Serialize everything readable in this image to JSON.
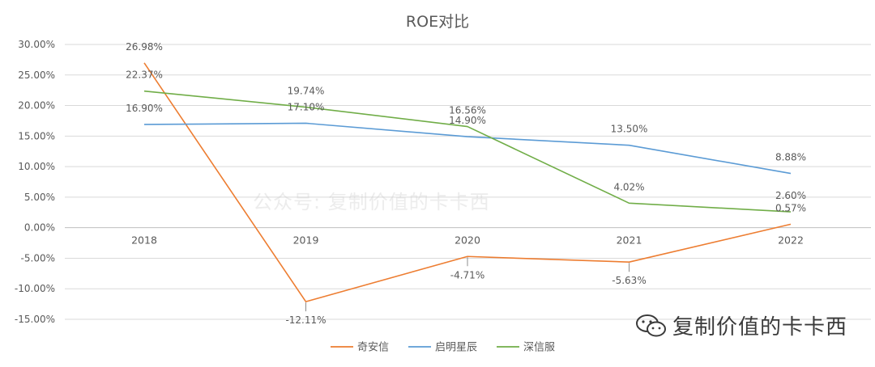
{
  "watermarks": {
    "center": "公众号: 复制价值的卡卡西",
    "corner": "复制价值的卡卡西",
    "corner_icon": "wechat-chat-bubbles-icon"
  },
  "chart_data": {
    "type": "line",
    "title": "ROE对比",
    "xlabel": "",
    "ylabel": "",
    "categories": [
      "2018",
      "2019",
      "2020",
      "2021",
      "2022"
    ],
    "ylim": [
      -15,
      30
    ],
    "yticks": [
      30,
      25,
      20,
      15,
      10,
      5,
      0,
      -5,
      -10,
      -15
    ],
    "ytick_labels": [
      "30.00%",
      "25.00%",
      "20.00%",
      "15.00%",
      "10.00%",
      "5.00%",
      "0.00%",
      "-5.00%",
      "-10.00%",
      "-15.00%"
    ],
    "grid": true,
    "legend_position": "bottom",
    "series": [
      {
        "name": "奇安信",
        "color": "#ED7D31",
        "values": [
          26.98,
          -12.11,
          -4.71,
          -5.63,
          0.57
        ],
        "labels": [
          "26.98%",
          "-12.11%",
          "-4.71%",
          "-5.63%",
          "0.57%"
        ]
      },
      {
        "name": "启明星辰",
        "color": "#5B9BD5",
        "values": [
          16.9,
          17.1,
          14.9,
          13.5,
          8.88
        ],
        "labels": [
          "16.90%",
          "17.10%",
          "14.90%",
          "13.50%",
          "8.88%"
        ]
      },
      {
        "name": "深信服",
        "color": "#70AD47",
        "values": [
          22.37,
          19.74,
          16.56,
          4.02,
          2.6
        ],
        "labels": [
          "22.37%",
          "19.74%",
          "16.56%",
          "4.02%",
          "2.60%"
        ]
      }
    ]
  }
}
